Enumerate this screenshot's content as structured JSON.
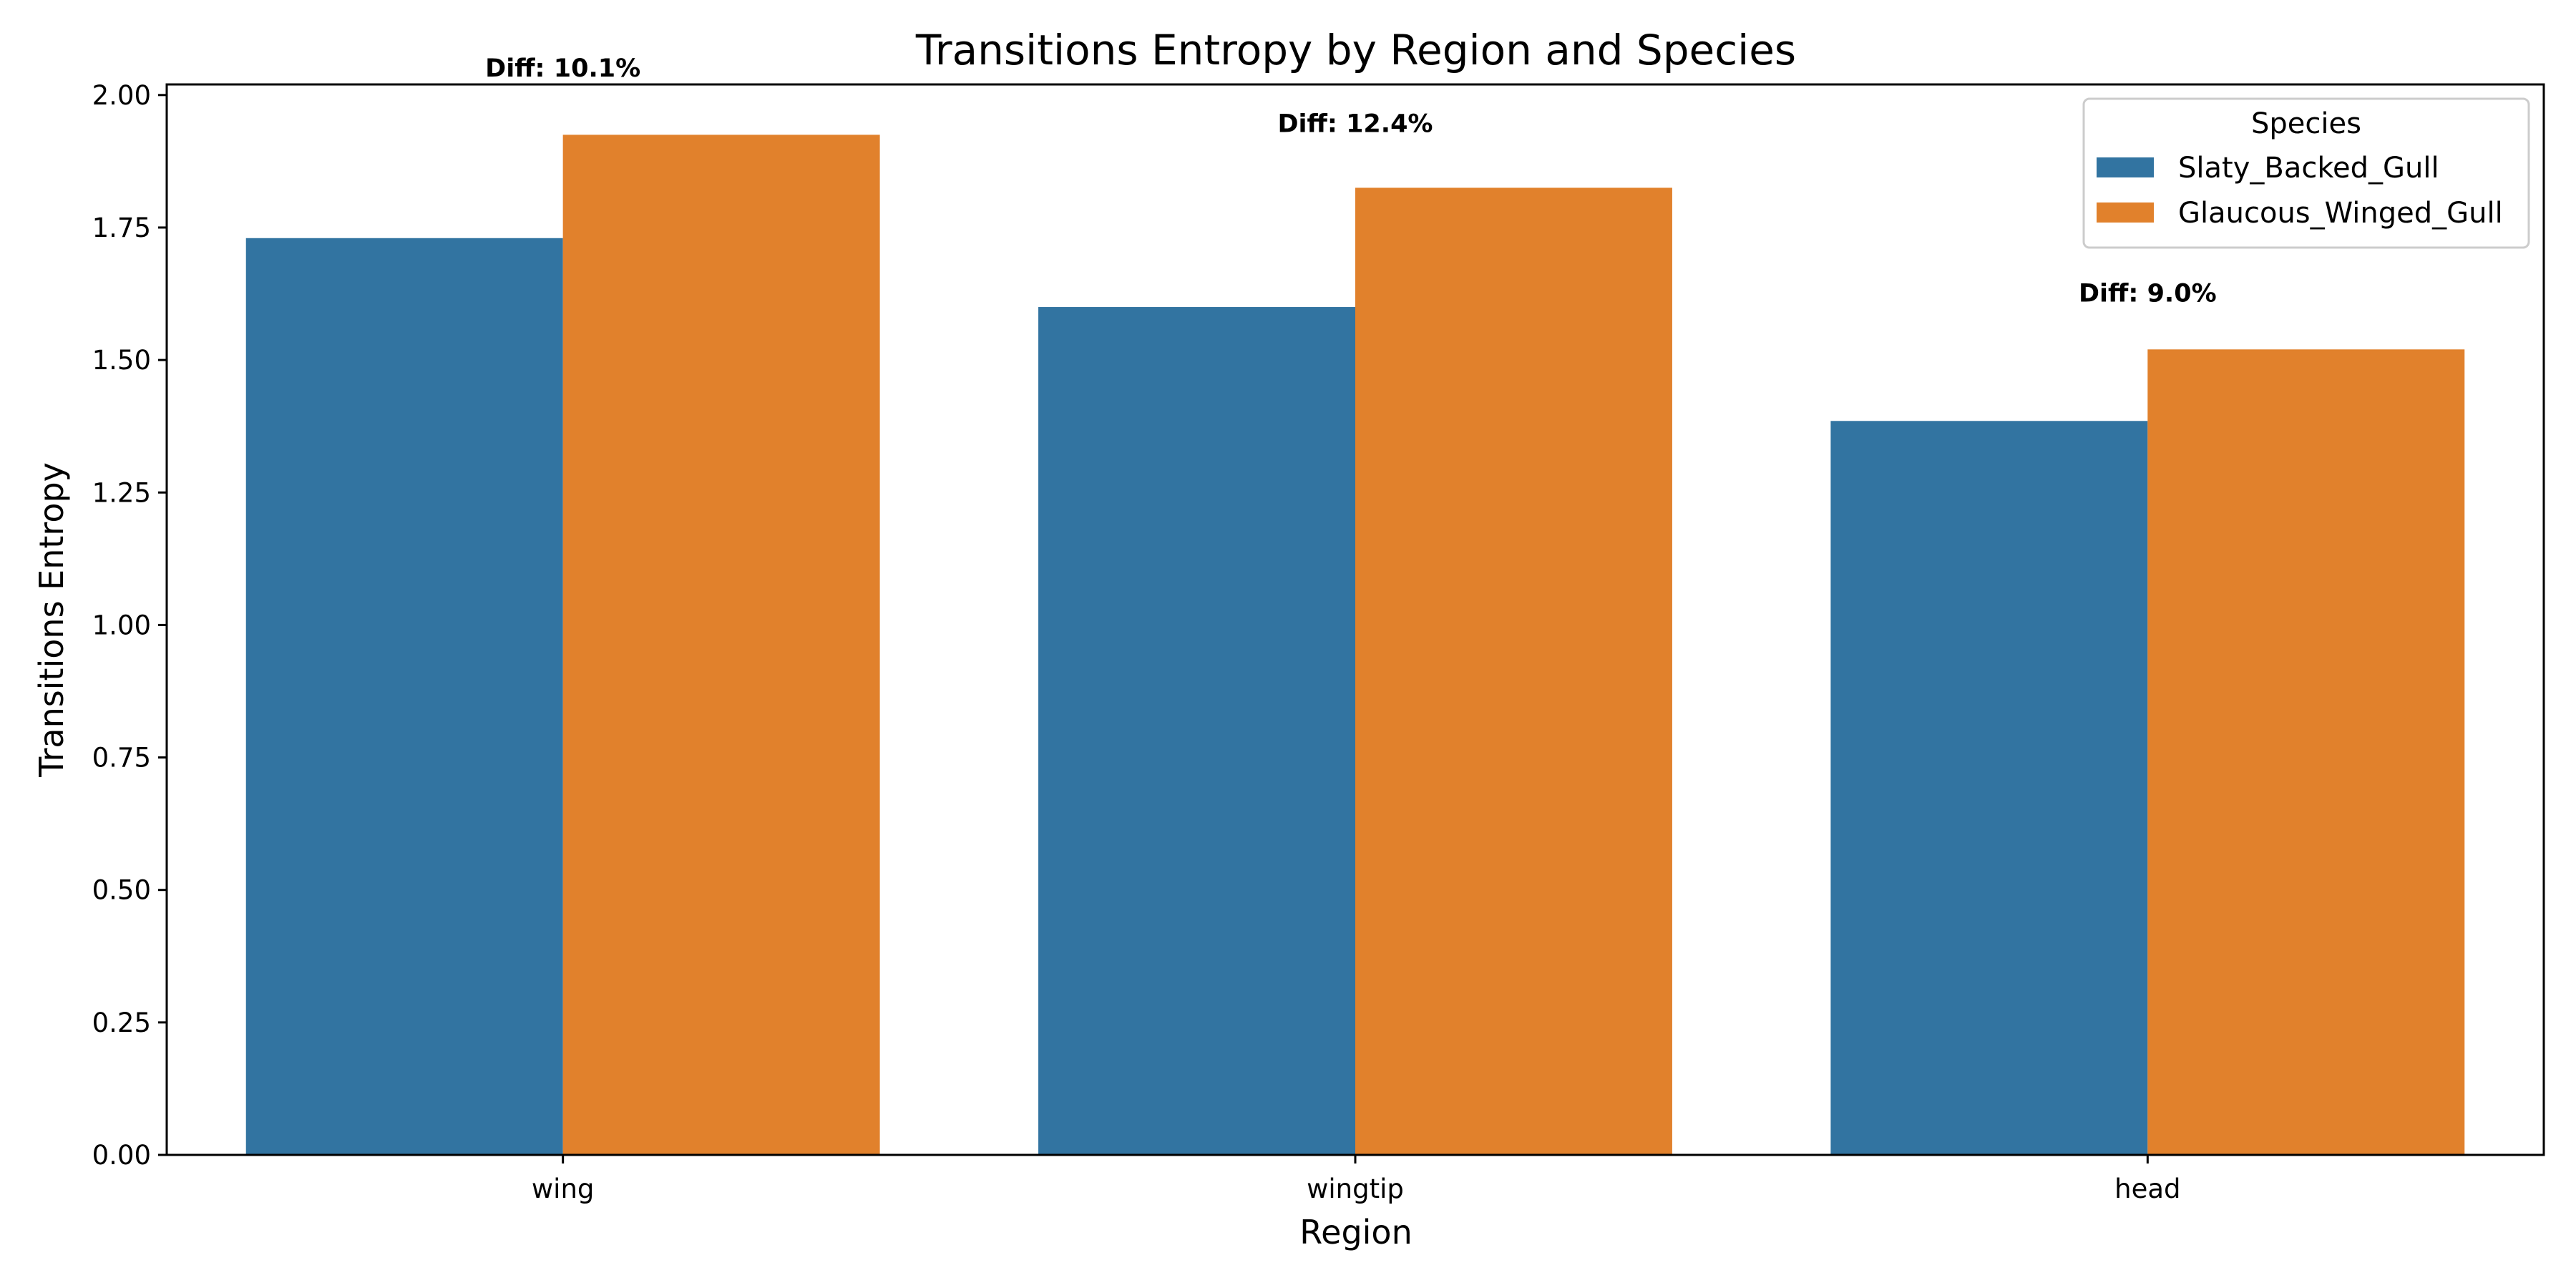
{
  "chart_data": {
    "type": "bar",
    "title": "Transitions Entropy by Region and Species",
    "xlabel": "Region",
    "ylabel": "Transitions Entropy",
    "categories": [
      "wing",
      "wingtip",
      "head"
    ],
    "series": [
      {
        "name": "Slaty_Backed_Gull",
        "values": [
          1.73,
          1.6,
          1.385
        ],
        "color": "#3274a1"
      },
      {
        "name": "Glaucous_Winged_Gull",
        "values": [
          1.925,
          1.825,
          1.52
        ],
        "color": "#e1812c"
      }
    ],
    "ylim": [
      0,
      2.02
    ],
    "yticks": [
      "0.00",
      "0.25",
      "0.50",
      "0.75",
      "1.00",
      "1.25",
      "1.50",
      "1.75",
      "2.00"
    ],
    "annotations": [
      {
        "category": "wing",
        "text": "Diff: 10.1%",
        "y": 2.035
      },
      {
        "category": "wingtip",
        "text": "Diff: 12.4%",
        "y": 1.93
      },
      {
        "category": "head",
        "text": "Diff: 9.0%",
        "y": 1.61
      }
    ],
    "legend": {
      "title": "Species",
      "position": "top-right"
    },
    "grid": false
  }
}
